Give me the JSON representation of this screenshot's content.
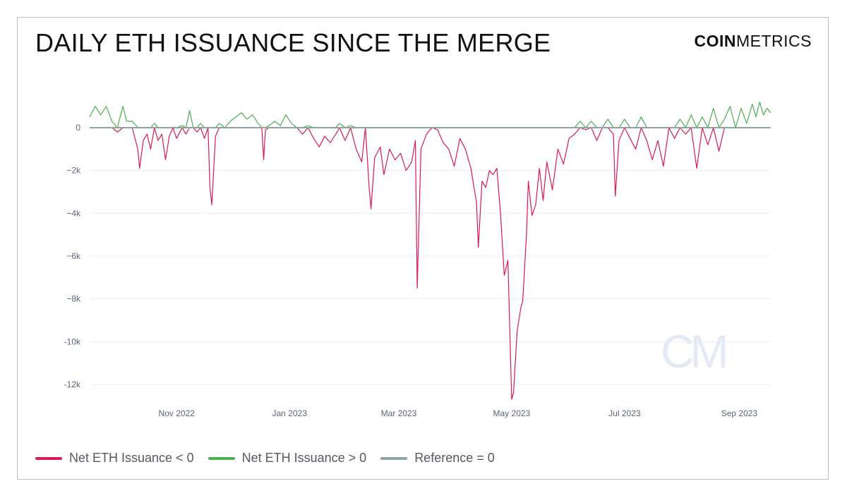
{
  "header": {
    "title": "DAILY ETH ISSUANCE SINCE THE MERGE",
    "brand_bold": "COIN",
    "brand_light": "METRICS",
    "watermark": "CM"
  },
  "colors": {
    "negative": "#d81b50",
    "positive": "#4caf50",
    "reference": "#8fa3a7",
    "grid": "#ececec",
    "axis_text": "#5b6478"
  },
  "chart_data": {
    "type": "line",
    "title": "DAILY ETH ISSUANCE SINCE THE MERGE",
    "xlabel": "",
    "ylabel": "",
    "x_start": "2022-09-15",
    "x_end": "2023-09-18",
    "ylim": [
      -12500,
      1500
    ],
    "y_ticks": [
      0,
      -2000,
      -4000,
      -6000,
      -8000,
      -10000,
      -12000
    ],
    "y_tick_labels": [
      "0",
      "−2k",
      "−4k",
      "−6k",
      "−8k",
      "-10k",
      "-12k"
    ],
    "x_ticks": [
      {
        "date": "2022-11-01",
        "label": "Nov 2022"
      },
      {
        "date": "2023-01-01",
        "label": "Jan 2023"
      },
      {
        "date": "2023-03-01",
        "label": "Mar 2023"
      },
      {
        "date": "2023-05-01",
        "label": "May 2023"
      },
      {
        "date": "2023-07-01",
        "label": "Jul 2023"
      },
      {
        "date": "2023-09-01",
        "label": "Sep 2023"
      }
    ],
    "grid": true,
    "legend_position": "bottom-left",
    "series": [
      {
        "name": "Net ETH Issuance < 0",
        "key": "negative"
      },
      {
        "name": "Net ETH Issuance > 0",
        "key": "positive"
      },
      {
        "name": "Reference = 0",
        "key": "reference"
      }
    ],
    "daily_net_issuance_keypoints": [
      [
        "2022-09-15",
        500
      ],
      [
        "2022-09-18",
        1000
      ],
      [
        "2022-09-21",
        600
      ],
      [
        "2022-09-24",
        1000
      ],
      [
        "2022-09-27",
        300
      ],
      [
        "2022-09-30",
        -200
      ],
      [
        "2022-10-03",
        1000
      ],
      [
        "2022-10-05",
        300
      ],
      [
        "2022-10-08",
        300
      ],
      [
        "2022-10-11",
        -1000
      ],
      [
        "2022-10-12",
        -1900
      ],
      [
        "2022-10-14",
        -600
      ],
      [
        "2022-10-16",
        -300
      ],
      [
        "2022-10-18",
        -1000
      ],
      [
        "2022-10-20",
        200
      ],
      [
        "2022-10-22",
        -600
      ],
      [
        "2022-10-24",
        -300
      ],
      [
        "2022-10-26",
        -1500
      ],
      [
        "2022-10-28",
        -400
      ],
      [
        "2022-10-30",
        0
      ],
      [
        "2022-11-01",
        -500
      ],
      [
        "2022-11-04",
        100
      ],
      [
        "2022-11-06",
        -300
      ],
      [
        "2022-11-08",
        800
      ],
      [
        "2022-11-10",
        0
      ],
      [
        "2022-11-12",
        -200
      ],
      [
        "2022-11-14",
        200
      ],
      [
        "2022-11-16",
        -500
      ],
      [
        "2022-11-18",
        0
      ],
      [
        "2022-11-19",
        -2800
      ],
      [
        "2022-11-20",
        -3600
      ],
      [
        "2022-11-22",
        -400
      ],
      [
        "2022-11-24",
        200
      ],
      [
        "2022-11-27",
        0
      ],
      [
        "2022-11-30",
        300
      ],
      [
        "2022-12-03",
        500
      ],
      [
        "2022-12-06",
        700
      ],
      [
        "2022-12-09",
        400
      ],
      [
        "2022-12-12",
        600
      ],
      [
        "2022-12-15",
        200
      ],
      [
        "2022-12-17",
        0
      ],
      [
        "2022-12-18",
        -1500
      ],
      [
        "2022-12-19",
        -100
      ],
      [
        "2022-12-21",
        100
      ],
      [
        "2022-12-24",
        300
      ],
      [
        "2022-12-27",
        100
      ],
      [
        "2022-12-30",
        600
      ],
      [
        "2023-01-02",
        200
      ],
      [
        "2023-01-05",
        0
      ],
      [
        "2023-01-08",
        -300
      ],
      [
        "2023-01-11",
        100
      ],
      [
        "2023-01-14",
        -500
      ],
      [
        "2023-01-17",
        -900
      ],
      [
        "2023-01-20",
        -400
      ],
      [
        "2023-01-23",
        -700
      ],
      [
        "2023-01-26",
        -300
      ],
      [
        "2023-01-28",
        200
      ],
      [
        "2023-01-31",
        -600
      ],
      [
        "2023-02-03",
        100
      ],
      [
        "2023-02-06",
        -1000
      ],
      [
        "2023-02-09",
        -1600
      ],
      [
        "2023-02-11",
        0
      ],
      [
        "2023-02-13",
        -2800
      ],
      [
        "2023-02-14",
        -3800
      ],
      [
        "2023-02-16",
        -1400
      ],
      [
        "2023-02-19",
        -900
      ],
      [
        "2023-02-21",
        -2200
      ],
      [
        "2023-02-24",
        -1000
      ],
      [
        "2023-02-27",
        -1500
      ],
      [
        "2023-03-02",
        -1200
      ],
      [
        "2023-03-05",
        -2000
      ],
      [
        "2023-03-08",
        -1600
      ],
      [
        "2023-03-10",
        -600
      ],
      [
        "2023-03-11",
        -7500
      ],
      [
        "2023-03-13",
        -1000
      ],
      [
        "2023-03-16",
        -300
      ],
      [
        "2023-03-19",
        0
      ],
      [
        "2023-03-22",
        -100
      ],
      [
        "2023-03-25",
        -700
      ],
      [
        "2023-03-28",
        -1000
      ],
      [
        "2023-03-31",
        -1800
      ],
      [
        "2023-04-03",
        -500
      ],
      [
        "2023-04-06",
        -1000
      ],
      [
        "2023-04-09",
        -1900
      ],
      [
        "2023-04-12",
        -3500
      ],
      [
        "2023-04-13",
        -5600
      ],
      [
        "2023-04-15",
        -2500
      ],
      [
        "2023-04-17",
        -2800
      ],
      [
        "2023-04-19",
        -2000
      ],
      [
        "2023-04-21",
        -2200
      ],
      [
        "2023-04-23",
        -1900
      ],
      [
        "2023-04-25",
        -4000
      ],
      [
        "2023-04-27",
        -6900
      ],
      [
        "2023-04-29",
        -6200
      ],
      [
        "2023-04-30",
        -9500
      ],
      [
        "2023-05-01",
        -12700
      ],
      [
        "2023-05-02",
        -12400
      ],
      [
        "2023-05-04",
        -9500
      ],
      [
        "2023-05-06",
        -8400
      ],
      [
        "2023-05-07",
        -8100
      ],
      [
        "2023-05-09",
        -5000
      ],
      [
        "2023-05-10",
        -2500
      ],
      [
        "2023-05-12",
        -4100
      ],
      [
        "2023-05-14",
        -3600
      ],
      [
        "2023-05-16",
        -1900
      ],
      [
        "2023-05-18",
        -3400
      ],
      [
        "2023-05-20",
        -1600
      ],
      [
        "2023-05-23",
        -2900
      ],
      [
        "2023-05-26",
        -1000
      ],
      [
        "2023-05-29",
        -1700
      ],
      [
        "2023-06-01",
        -500
      ],
      [
        "2023-06-04",
        -300
      ],
      [
        "2023-06-07",
        300
      ],
      [
        "2023-06-10",
        -100
      ],
      [
        "2023-06-13",
        300
      ],
      [
        "2023-06-16",
        -600
      ],
      [
        "2023-06-19",
        0
      ],
      [
        "2023-06-22",
        400
      ],
      [
        "2023-06-25",
        -300
      ],
      [
        "2023-06-26",
        -3200
      ],
      [
        "2023-06-28",
        -600
      ],
      [
        "2023-07-01",
        400
      ],
      [
        "2023-07-04",
        -500
      ],
      [
        "2023-07-07",
        -1000
      ],
      [
        "2023-07-10",
        500
      ],
      [
        "2023-07-13",
        -600
      ],
      [
        "2023-07-16",
        -1500
      ],
      [
        "2023-07-19",
        -600
      ],
      [
        "2023-07-22",
        -1800
      ],
      [
        "2023-07-25",
        0
      ],
      [
        "2023-07-28",
        -500
      ],
      [
        "2023-07-31",
        400
      ],
      [
        "2023-08-03",
        -300
      ],
      [
        "2023-08-06",
        600
      ],
      [
        "2023-08-09",
        -1900
      ],
      [
        "2023-08-12",
        500
      ],
      [
        "2023-08-15",
        -800
      ],
      [
        "2023-08-18",
        900
      ],
      [
        "2023-08-21",
        -1100
      ],
      [
        "2023-08-24",
        400
      ],
      [
        "2023-08-27",
        1000
      ],
      [
        "2023-08-30",
        0
      ],
      [
        "2023-09-02",
        900
      ],
      [
        "2023-09-05",
        200
      ],
      [
        "2023-09-08",
        1100
      ],
      [
        "2023-09-10",
        500
      ],
      [
        "2023-09-12",
        1200
      ],
      [
        "2023-09-14",
        600
      ],
      [
        "2023-09-16",
        900
      ],
      [
        "2023-09-18",
        700
      ]
    ]
  }
}
